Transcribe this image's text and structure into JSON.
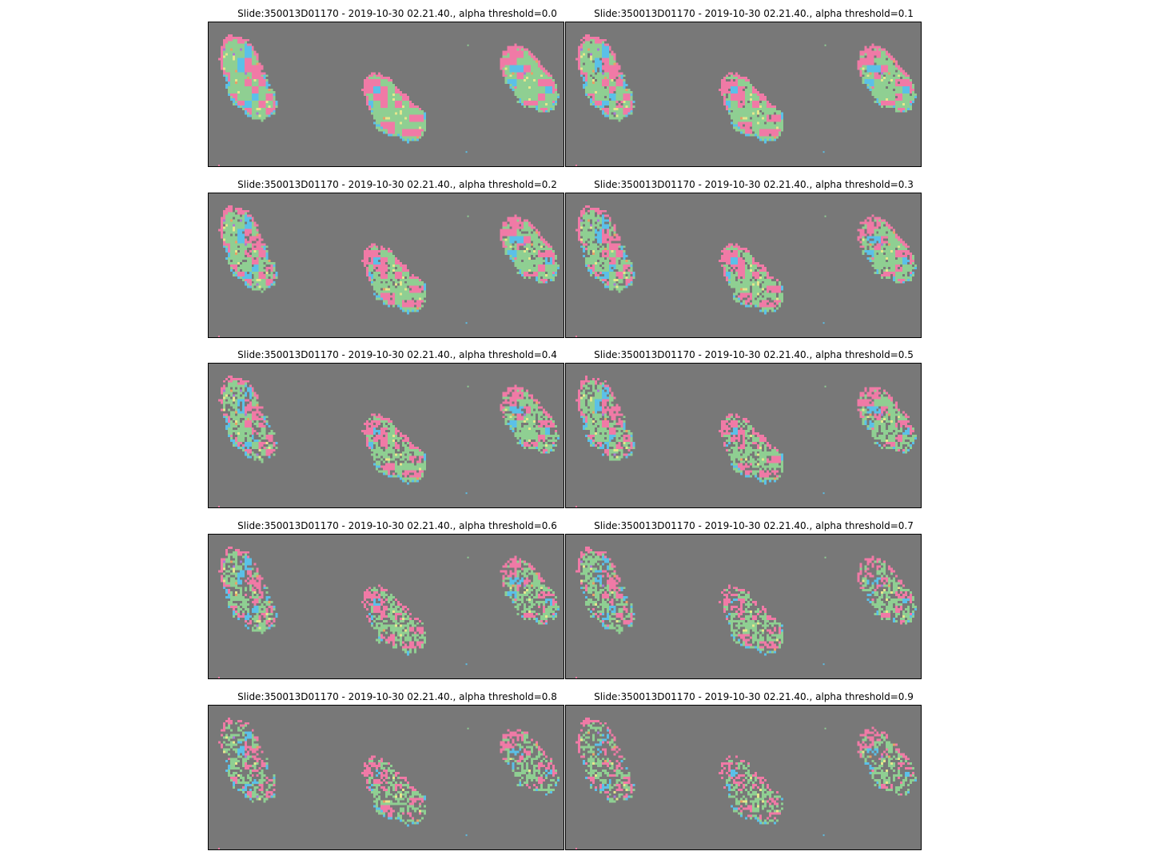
{
  "colors": {
    "background": "#787878",
    "green": "#8fcf92",
    "pink": "#f07aa6",
    "blue": "#5bc0e8",
    "yellow": "#e6e68c",
    "purple": "#a97ad4",
    "orange": "#e8a068"
  },
  "panels": [
    {
      "title": "Slide:350013D01170 - 2019-10-30 02.21.40., alpha threshold=0.0",
      "alpha": 0.0
    },
    {
      "title": "Slide:350013D01170 - 2019-10-30 02.21.40., alpha threshold=0.1",
      "alpha": 0.1
    },
    {
      "title": "Slide:350013D01170 - 2019-10-30 02.21.40., alpha threshold=0.2",
      "alpha": 0.2
    },
    {
      "title": "Slide:350013D01170 - 2019-10-30 02.21.40., alpha threshold=0.3",
      "alpha": 0.3
    },
    {
      "title": "Slide:350013D01170 - 2019-10-30 02.21.40., alpha threshold=0.4",
      "alpha": 0.4
    },
    {
      "title": "Slide:350013D01170 - 2019-10-30 02.21.40., alpha threshold=0.5",
      "alpha": 0.5
    },
    {
      "title": "Slide:350013D01170 - 2019-10-30 02.21.40., alpha threshold=0.6",
      "alpha": 0.6
    },
    {
      "title": "Slide:350013D01170 - 2019-10-30 02.21.40., alpha threshold=0.7",
      "alpha": 0.7
    },
    {
      "title": "Slide:350013D01170 - 2019-10-30 02.21.40., alpha threshold=0.8",
      "alpha": 0.8
    },
    {
      "title": "Slide:350013D01170 - 2019-10-30 02.21.40., alpha threshold=0.9",
      "alpha": 0.9
    }
  ]
}
